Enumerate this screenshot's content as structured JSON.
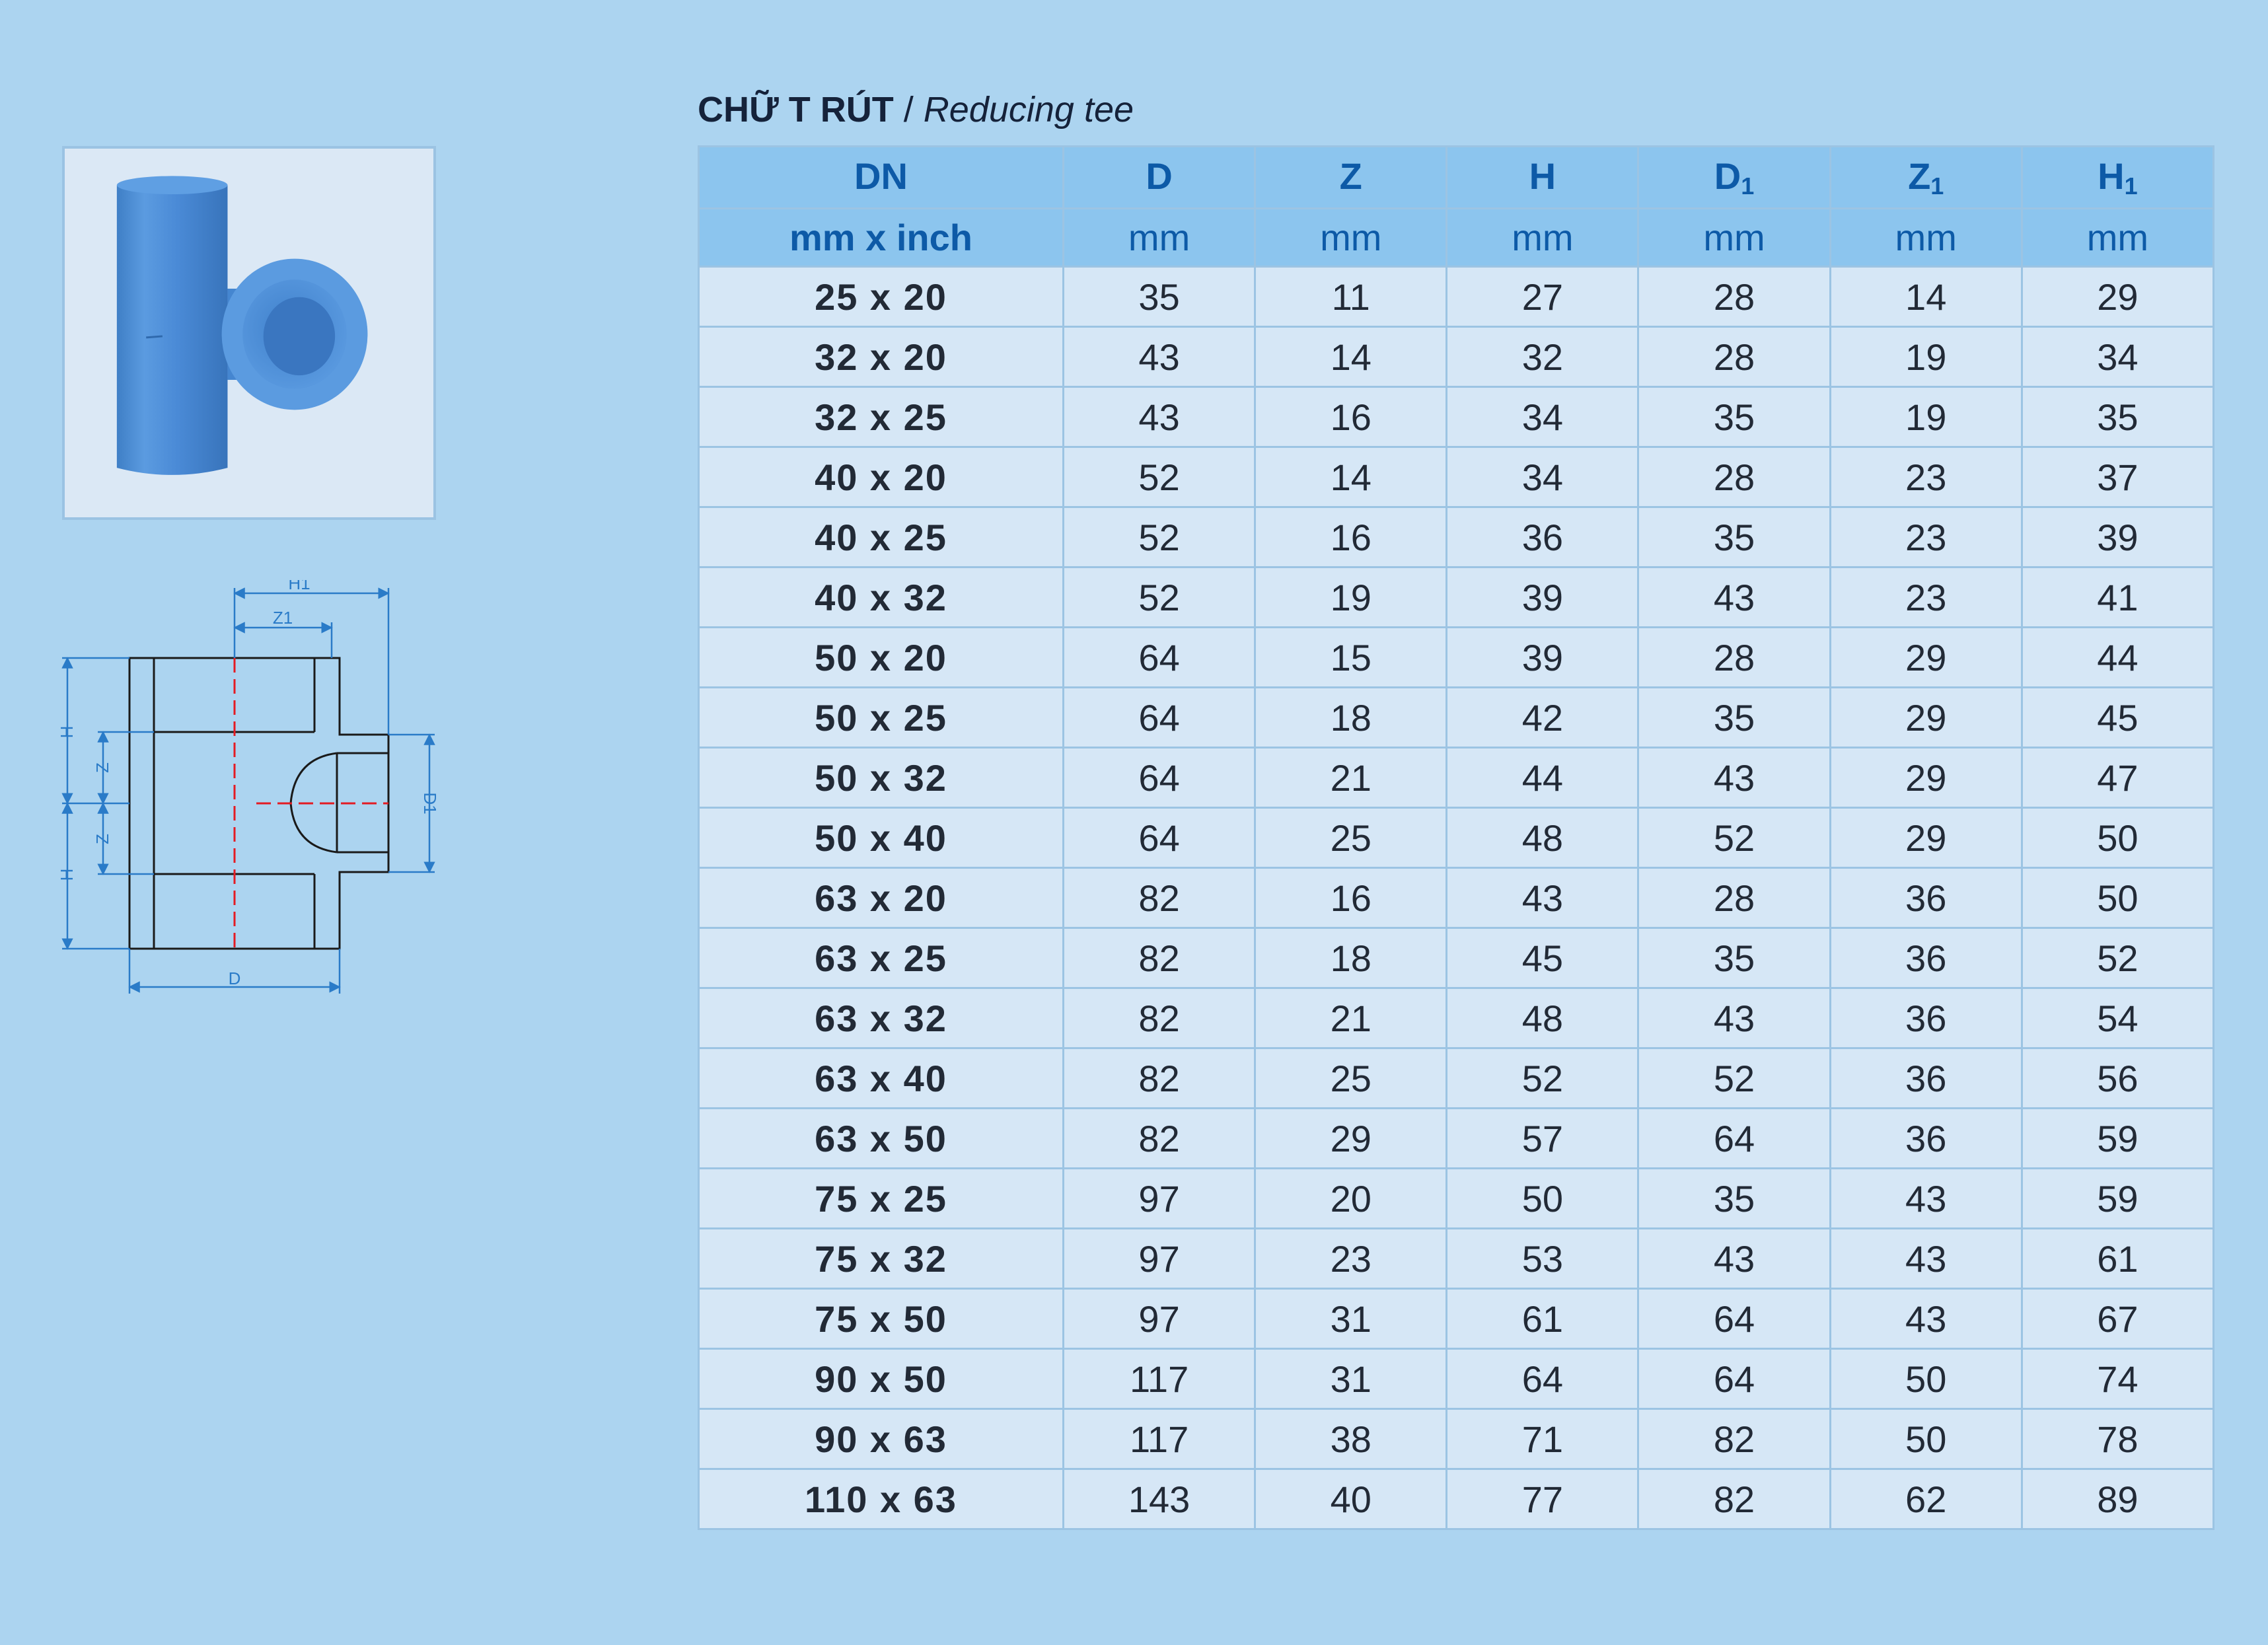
{
  "title": {
    "main": "CHỮ T RÚT",
    "separator": " / ",
    "subtitle": "Reducing tee"
  },
  "headers": [
    {
      "symbol": "DN",
      "sub": "",
      "unit": "mm x inch"
    },
    {
      "symbol": "D",
      "sub": "",
      "unit": "mm"
    },
    {
      "symbol": "Z",
      "sub": "",
      "unit": "mm"
    },
    {
      "symbol": "H",
      "sub": "",
      "unit": "mm"
    },
    {
      "symbol": "D",
      "sub": "1",
      "unit": "mm"
    },
    {
      "symbol": "Z",
      "sub": "1",
      "unit": "mm"
    },
    {
      "symbol": "H",
      "sub": "1",
      "unit": "mm"
    }
  ],
  "rows": [
    [
      "25 x 20",
      "35",
      "11",
      "27",
      "28",
      "14",
      "29"
    ],
    [
      "32 x 20",
      "43",
      "14",
      "32",
      "28",
      "19",
      "34"
    ],
    [
      "32 x 25",
      "43",
      "16",
      "34",
      "35",
      "19",
      "35"
    ],
    [
      "40 x 20",
      "52",
      "14",
      "34",
      "28",
      "23",
      "37"
    ],
    [
      "40 x 25",
      "52",
      "16",
      "36",
      "35",
      "23",
      "39"
    ],
    [
      "40 x 32",
      "52",
      "19",
      "39",
      "43",
      "23",
      "41"
    ],
    [
      "50 x 20",
      "64",
      "15",
      "39",
      "28",
      "29",
      "44"
    ],
    [
      "50 x 25",
      "64",
      "18",
      "42",
      "35",
      "29",
      "45"
    ],
    [
      "50 x 32",
      "64",
      "21",
      "44",
      "43",
      "29",
      "47"
    ],
    [
      "50 x 40",
      "64",
      "25",
      "48",
      "52",
      "29",
      "50"
    ],
    [
      "63 x 20",
      "82",
      "16",
      "43",
      "28",
      "36",
      "50"
    ],
    [
      "63 x 25",
      "82",
      "18",
      "45",
      "35",
      "36",
      "52"
    ],
    [
      "63 x 32",
      "82",
      "21",
      "48",
      "43",
      "36",
      "54"
    ],
    [
      "63 x 40",
      "82",
      "25",
      "52",
      "52",
      "36",
      "56"
    ],
    [
      "63 x 50",
      "82",
      "29",
      "57",
      "64",
      "36",
      "59"
    ],
    [
      "75 x 25",
      "97",
      "20",
      "50",
      "35",
      "43",
      "59"
    ],
    [
      "75 x 32",
      "97",
      "23",
      "53",
      "43",
      "43",
      "61"
    ],
    [
      "75 x 50",
      "97",
      "31",
      "61",
      "64",
      "43",
      "67"
    ],
    [
      "90 x 50",
      "117",
      "31",
      "64",
      "64",
      "50",
      "74"
    ],
    [
      "90 x 63",
      "117",
      "38",
      "71",
      "82",
      "50",
      "78"
    ],
    [
      "110 x 63",
      "143",
      "40",
      "77",
      "82",
      "62",
      "89"
    ]
  ],
  "diagram_labels": {
    "h1": "H1",
    "z1": "Z1",
    "h_top": "H",
    "z_top": "Z",
    "z_bottom": "Z",
    "h_bottom": "H",
    "d1": "D1",
    "d": "D"
  },
  "colors": {
    "background": "#acd4f0",
    "header_background": "#8cc5ee",
    "header_text": "#0d5aa7",
    "cell_background": "#d6e7f6",
    "grid_line": "#9cc4e3",
    "diagram_line": "#2a7bc8",
    "centerline": "#e31b23",
    "fitting": "#4a8fd8"
  }
}
